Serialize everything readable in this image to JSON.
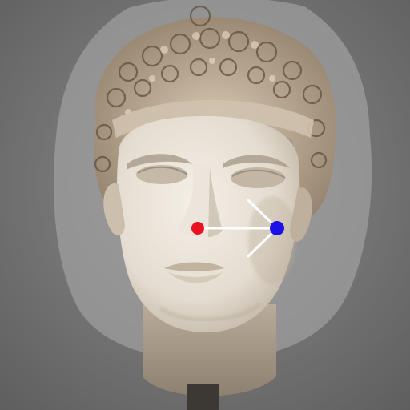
{
  "image": {
    "subject": "bust-head",
    "drag": {
      "start_marker_color": "#e8111d",
      "end_marker_color": "#1c12e6",
      "arrow_color": "#ffffff"
    },
    "palette": {
      "background": "#6e6e6e",
      "halo": "#9a9a9a",
      "marble_light": "#f1ece4",
      "marble_mid": "#d7cec1",
      "marble_shadow": "#9c8f80",
      "hair_light": "#d9cbb6",
      "hair_dark": "#6f5d49"
    }
  }
}
